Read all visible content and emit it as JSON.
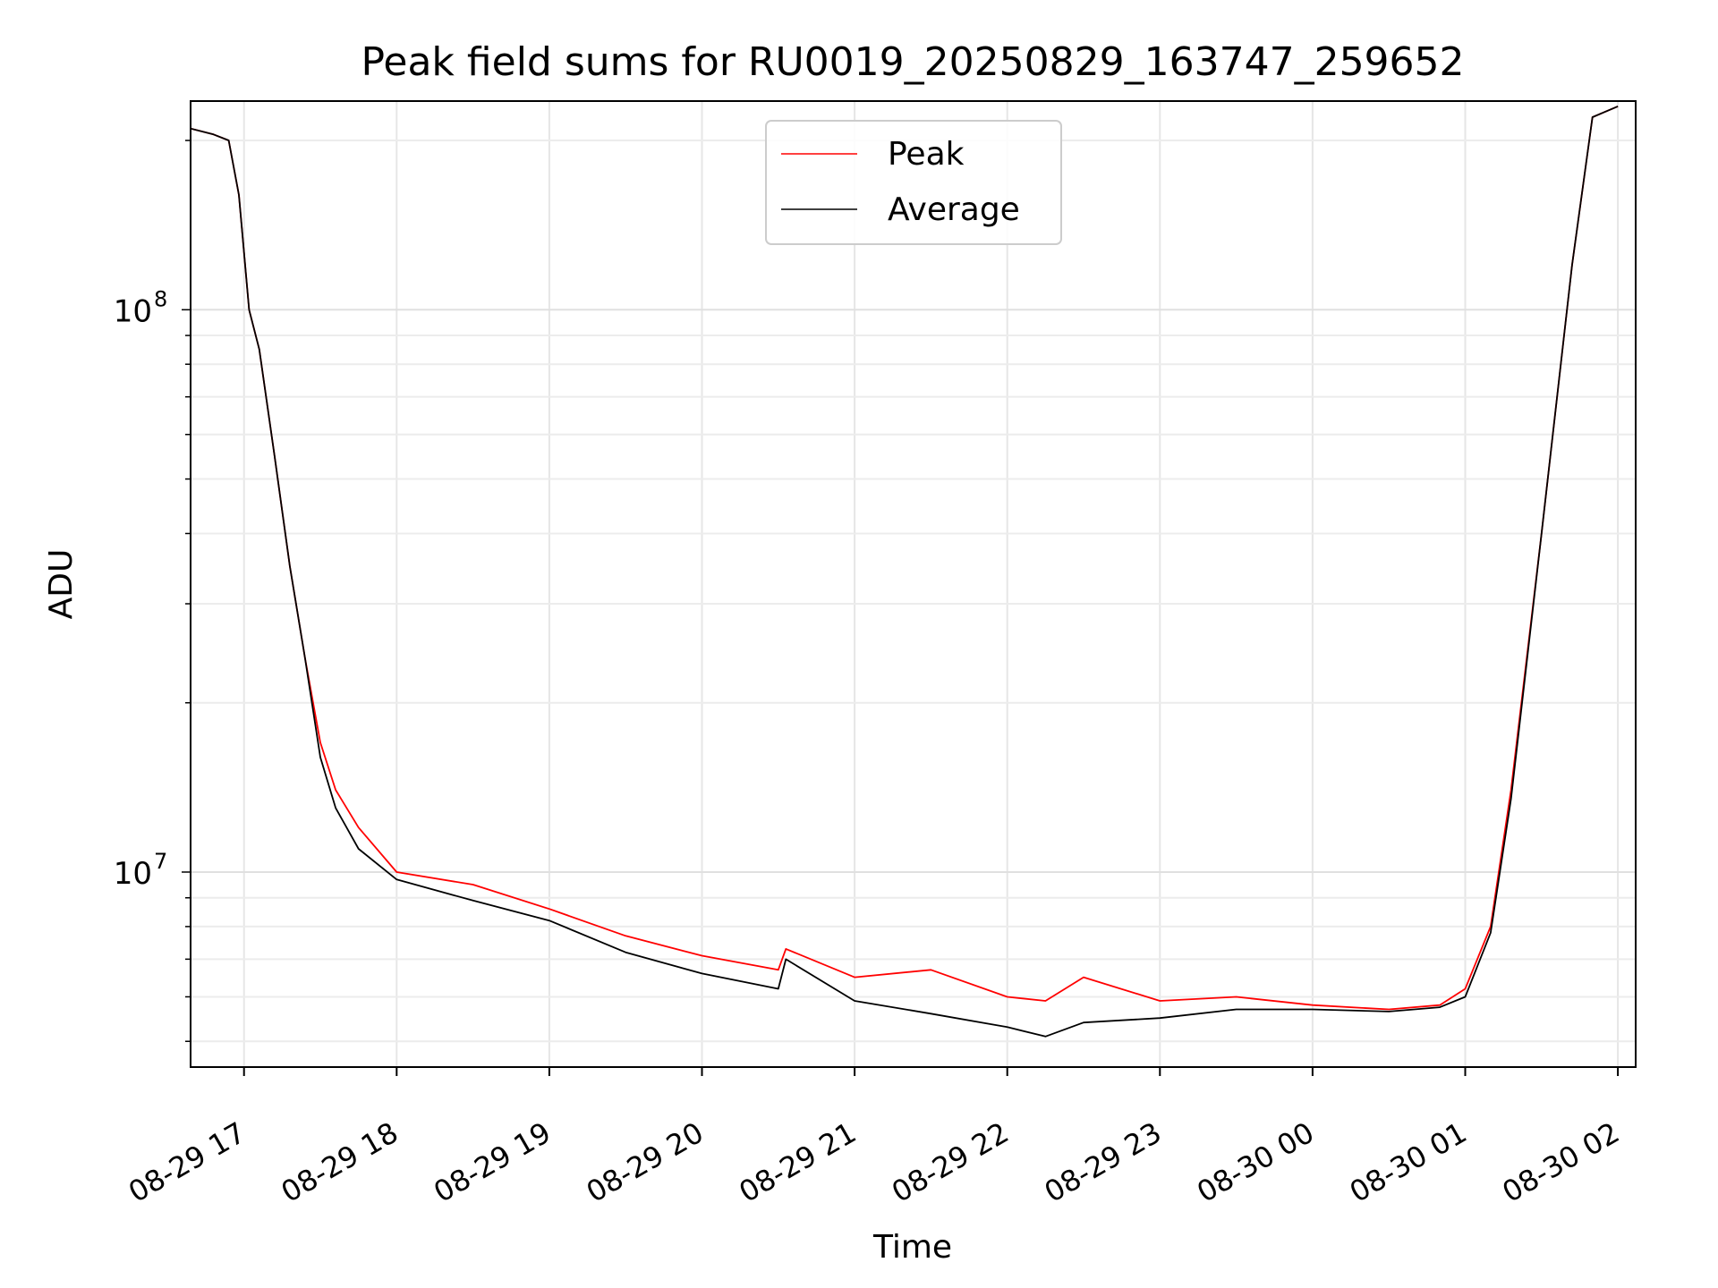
{
  "chart_data": {
    "type": "line",
    "title": "Peak field sums for RU0019_20250829_163747_259652",
    "xlabel": "Time",
    "ylabel": "ADU",
    "y_scale": "log",
    "grid": true,
    "grid_minor": true,
    "legend_position": "top-center",
    "xlim": [
      "2025-08-29 16:39",
      "2025-08-30 02:07"
    ],
    "ylim": [
      4500000,
      235000000
    ],
    "x_ticks": [
      {
        "t": "2025-08-29 17:00",
        "label": "08-29 17"
      },
      {
        "t": "2025-08-29 18:00",
        "label": "08-29 18"
      },
      {
        "t": "2025-08-29 19:00",
        "label": "08-29 19"
      },
      {
        "t": "2025-08-29 20:00",
        "label": "08-29 20"
      },
      {
        "t": "2025-08-29 21:00",
        "label": "08-29 21"
      },
      {
        "t": "2025-08-29 22:00",
        "label": "08-29 22"
      },
      {
        "t": "2025-08-29 23:00",
        "label": "08-29 23"
      },
      {
        "t": "2025-08-30 00:00",
        "label": "08-30 00"
      },
      {
        "t": "2025-08-30 01:00",
        "label": "08-30 01"
      },
      {
        "t": "2025-08-30 02:00",
        "label": "08-30 02"
      }
    ],
    "y_ticks": [
      {
        "value": 10000000,
        "base": "10",
        "exp": "7"
      },
      {
        "value": 100000000,
        "base": "10",
        "exp": "8"
      }
    ],
    "series": [
      {
        "name": "Peak",
        "color": "#ff0000",
        "points": [
          [
            "2025-08-29 16:39",
            210000000
          ],
          [
            "2025-08-29 16:48",
            205000000
          ],
          [
            "2025-08-29 16:54",
            200000000
          ],
          [
            "2025-08-29 16:58",
            160000000
          ],
          [
            "2025-08-29 17:02",
            100000000
          ],
          [
            "2025-08-29 17:06",
            85000000
          ],
          [
            "2025-08-29 17:12",
            55000000
          ],
          [
            "2025-08-29 17:18",
            35000000
          ],
          [
            "2025-08-29 17:24",
            24000000
          ],
          [
            "2025-08-29 17:30",
            17000000
          ],
          [
            "2025-08-29 17:36",
            14000000
          ],
          [
            "2025-08-29 17:45",
            12000000
          ],
          [
            "2025-08-29 18:00",
            10000000
          ],
          [
            "2025-08-29 18:30",
            9500000
          ],
          [
            "2025-08-29 19:00",
            8600000
          ],
          [
            "2025-08-29 19:30",
            7700000
          ],
          [
            "2025-08-29 20:00",
            7100000
          ],
          [
            "2025-08-29 20:30",
            6700000
          ],
          [
            "2025-08-29 20:33",
            7300000
          ],
          [
            "2025-08-29 21:00",
            6500000
          ],
          [
            "2025-08-29 21:30",
            6700000
          ],
          [
            "2025-08-29 22:00",
            6000000
          ],
          [
            "2025-08-29 22:15",
            5900000
          ],
          [
            "2025-08-29 22:30",
            6500000
          ],
          [
            "2025-08-29 23:00",
            5900000
          ],
          [
            "2025-08-29 23:30",
            6000000
          ],
          [
            "2025-08-30 00:00",
            5800000
          ],
          [
            "2025-08-30 00:30",
            5700000
          ],
          [
            "2025-08-30 00:50",
            5800000
          ],
          [
            "2025-08-30 01:00",
            6200000
          ],
          [
            "2025-08-30 01:10",
            8000000
          ],
          [
            "2025-08-30 01:18",
            14000000
          ],
          [
            "2025-08-30 01:30",
            40000000
          ],
          [
            "2025-08-30 01:42",
            120000000
          ],
          [
            "2025-08-30 01:50",
            220000000
          ],
          [
            "2025-08-30 02:00",
            230000000
          ]
        ]
      },
      {
        "name": "Average",
        "color": "#000000",
        "points": [
          [
            "2025-08-29 16:39",
            210000000
          ],
          [
            "2025-08-29 16:48",
            205000000
          ],
          [
            "2025-08-29 16:54",
            200000000
          ],
          [
            "2025-08-29 16:58",
            160000000
          ],
          [
            "2025-08-29 17:02",
            100000000
          ],
          [
            "2025-08-29 17:06",
            85000000
          ],
          [
            "2025-08-29 17:12",
            55000000
          ],
          [
            "2025-08-29 17:18",
            35000000
          ],
          [
            "2025-08-29 17:24",
            24000000
          ],
          [
            "2025-08-29 17:30",
            16000000
          ],
          [
            "2025-08-29 17:36",
            13000000
          ],
          [
            "2025-08-29 17:45",
            11000000
          ],
          [
            "2025-08-29 18:00",
            9700000
          ],
          [
            "2025-08-29 18:30",
            8900000
          ],
          [
            "2025-08-29 19:00",
            8200000
          ],
          [
            "2025-08-29 19:30",
            7200000
          ],
          [
            "2025-08-29 20:00",
            6600000
          ],
          [
            "2025-08-29 20:30",
            6200000
          ],
          [
            "2025-08-29 20:33",
            7000000
          ],
          [
            "2025-08-29 21:00",
            5900000
          ],
          [
            "2025-08-29 21:30",
            5600000
          ],
          [
            "2025-08-29 22:00",
            5300000
          ],
          [
            "2025-08-29 22:15",
            5100000
          ],
          [
            "2025-08-29 22:30",
            5400000
          ],
          [
            "2025-08-29 23:00",
            5500000
          ],
          [
            "2025-08-29 23:30",
            5700000
          ],
          [
            "2025-08-30 00:00",
            5700000
          ],
          [
            "2025-08-30 00:30",
            5650000
          ],
          [
            "2025-08-30 00:50",
            5750000
          ],
          [
            "2025-08-30 01:00",
            6000000
          ],
          [
            "2025-08-30 01:10",
            7800000
          ],
          [
            "2025-08-30 01:18",
            13500000
          ],
          [
            "2025-08-30 01:30",
            40000000
          ],
          [
            "2025-08-30 01:42",
            120000000
          ],
          [
            "2025-08-30 01:50",
            220000000
          ],
          [
            "2025-08-30 02:00",
            230000000
          ]
        ]
      }
    ]
  }
}
